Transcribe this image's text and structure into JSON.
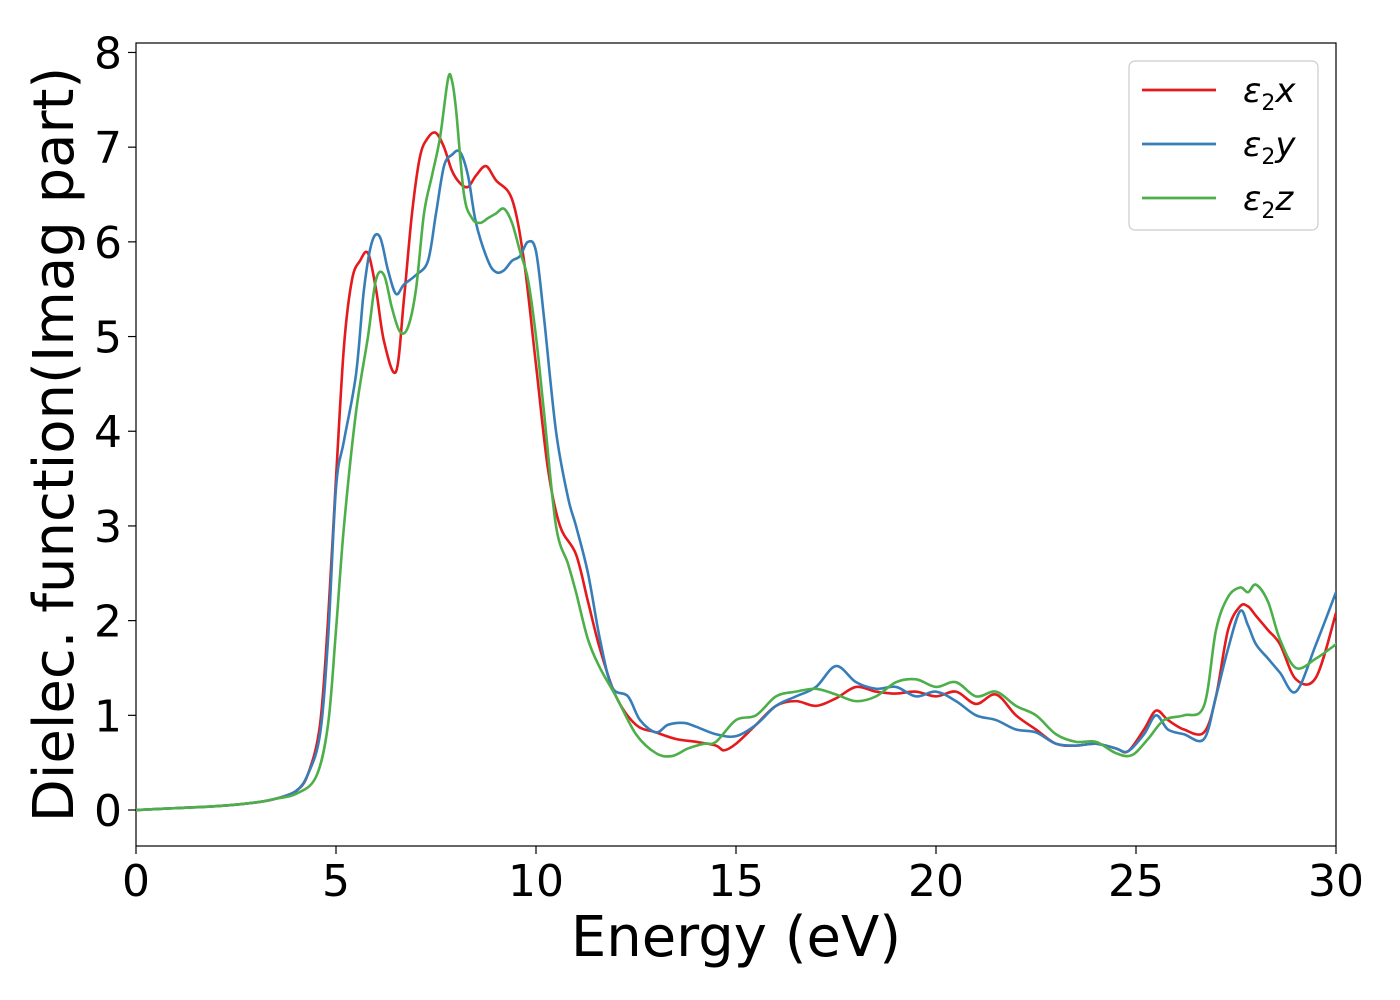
{
  "chart_data": {
    "type": "line",
    "title": "",
    "xlabel": "Energy (eV)",
    "ylabel": "Dielec. function(Imag part)",
    "xlim": [
      0,
      30
    ],
    "ylim": [
      -0.38,
      8.1
    ],
    "xticks": [
      0,
      5,
      10,
      15,
      20,
      25,
      30
    ],
    "yticks": [
      0,
      1,
      2,
      3,
      4,
      5,
      6,
      7,
      8
    ],
    "xtick_labels": [
      "0",
      "5",
      "10",
      "15",
      "20",
      "25",
      "30"
    ],
    "ytick_labels": [
      "0",
      "1",
      "2",
      "3",
      "4",
      "5",
      "6",
      "7",
      "8"
    ],
    "grid": false,
    "legend_position": "top-right",
    "series": [
      {
        "name": "ε2x",
        "legend_base": "ε",
        "legend_sub": "2",
        "legend_tail": "x",
        "color": "#e41a1c",
        "x": [
          0,
          1,
          2,
          3,
          3.5,
          4,
          4.3,
          4.6,
          4.8,
          5.0,
          5.2,
          5.4,
          5.6,
          5.8,
          6.0,
          6.2,
          6.5,
          6.7,
          6.9,
          7.1,
          7.3,
          7.5,
          7.7,
          7.9,
          8.1,
          8.3,
          8.5,
          8.75,
          9.0,
          9.4,
          9.7,
          10.0,
          10.3,
          10.6,
          11.0,
          11.3,
          11.6,
          12.0,
          12.5,
          13.0,
          13.5,
          14.0,
          14.5,
          14.7,
          15.0,
          15.5,
          16.0,
          16.5,
          17.0,
          17.5,
          18.0,
          18.5,
          19.0,
          19.5,
          20.0,
          20.5,
          21.0,
          21.5,
          22.0,
          22.5,
          23.0,
          23.5,
          24.0,
          24.5,
          24.8,
          25.2,
          25.5,
          25.8,
          26.2,
          26.7,
          27.0,
          27.3,
          27.6,
          27.8,
          28.0,
          28.3,
          28.6,
          29.0,
          29.5,
          30.0
        ],
        "y": [
          0.0,
          0.02,
          0.04,
          0.08,
          0.12,
          0.2,
          0.38,
          0.9,
          2.0,
          3.5,
          4.9,
          5.6,
          5.8,
          5.88,
          5.5,
          4.95,
          4.63,
          5.4,
          6.3,
          6.9,
          7.1,
          7.15,
          7.0,
          6.75,
          6.62,
          6.58,
          6.7,
          6.8,
          6.65,
          6.45,
          5.8,
          4.7,
          3.6,
          3.0,
          2.7,
          2.2,
          1.7,
          1.2,
          0.9,
          0.82,
          0.75,
          0.72,
          0.68,
          0.63,
          0.7,
          0.9,
          1.1,
          1.15,
          1.1,
          1.18,
          1.3,
          1.25,
          1.23,
          1.25,
          1.2,
          1.25,
          1.12,
          1.22,
          1.0,
          0.85,
          0.7,
          0.68,
          0.7,
          0.65,
          0.62,
          0.85,
          1.05,
          0.95,
          0.85,
          0.82,
          1.2,
          1.9,
          2.15,
          2.15,
          2.05,
          1.9,
          1.75,
          1.38,
          1.4,
          2.08
        ]
      },
      {
        "name": "ε2y",
        "legend_base": "ε",
        "legend_sub": "2",
        "legend_tail": "y",
        "color": "#377eb8",
        "x": [
          0,
          1,
          2,
          3,
          3.5,
          4,
          4.3,
          4.6,
          4.8,
          5.0,
          5.2,
          5.5,
          5.7,
          5.9,
          6.1,
          6.3,
          6.5,
          6.7,
          7.0,
          7.3,
          7.5,
          7.7,
          7.9,
          8.1,
          8.3,
          8.5,
          8.8,
          9.0,
          9.2,
          9.4,
          9.6,
          9.8,
          10.0,
          10.2,
          10.5,
          10.8,
          11.0,
          11.3,
          11.6,
          11.9,
          12.3,
          12.6,
          13.0,
          13.3,
          13.7,
          14.0,
          14.5,
          15.0,
          15.5,
          16.0,
          16.5,
          17.0,
          17.5,
          18.0,
          18.5,
          19.0,
          19.5,
          20.0,
          20.5,
          21.0,
          21.5,
          22.0,
          22.5,
          23.0,
          23.5,
          24.0,
          24.5,
          24.8,
          25.2,
          25.5,
          25.8,
          26.2,
          26.7,
          27.0,
          27.3,
          27.6,
          27.8,
          28.0,
          28.3,
          28.6,
          29.0,
          29.5,
          30.0
        ],
        "y": [
          0.0,
          0.02,
          0.04,
          0.08,
          0.12,
          0.2,
          0.38,
          0.8,
          1.8,
          3.4,
          3.9,
          4.6,
          5.5,
          6.0,
          6.05,
          5.7,
          5.45,
          5.55,
          5.65,
          5.8,
          6.3,
          6.8,
          6.92,
          6.95,
          6.7,
          6.2,
          5.8,
          5.68,
          5.7,
          5.8,
          5.85,
          6.0,
          5.9,
          5.2,
          4.0,
          3.3,
          3.0,
          2.5,
          1.8,
          1.3,
          1.2,
          0.95,
          0.82,
          0.9,
          0.92,
          0.88,
          0.8,
          0.78,
          0.9,
          1.1,
          1.2,
          1.3,
          1.52,
          1.35,
          1.28,
          1.3,
          1.2,
          1.25,
          1.15,
          1.0,
          0.95,
          0.85,
          0.82,
          0.7,
          0.68,
          0.7,
          0.65,
          0.62,
          0.8,
          1.0,
          0.85,
          0.8,
          0.75,
          1.2,
          1.7,
          2.1,
          1.95,
          1.75,
          1.6,
          1.45,
          1.25,
          1.75,
          2.3
        ]
      },
      {
        "name": "ε2z",
        "legend_base": "ε",
        "legend_sub": "2",
        "legend_tail": "z",
        "color": "#4daf4a",
        "x": [
          0,
          1,
          2,
          3,
          3.5,
          4,
          4.5,
          4.8,
          5.0,
          5.2,
          5.5,
          5.8,
          6.0,
          6.2,
          6.4,
          6.6,
          6.8,
          7.0,
          7.2,
          7.4,
          7.6,
          7.8,
          7.9,
          8.0,
          8.2,
          8.4,
          8.6,
          8.8,
          9.0,
          9.2,
          9.4,
          9.6,
          9.8,
          10.0,
          10.2,
          10.5,
          10.8,
          11.0,
          11.3,
          11.6,
          12.0,
          12.5,
          13.0,
          13.4,
          13.8,
          14.2,
          14.5,
          15.0,
          15.5,
          16.0,
          16.5,
          17.0,
          17.5,
          18.0,
          18.5,
          19.0,
          19.5,
          20.0,
          20.5,
          21.0,
          21.5,
          22.0,
          22.5,
          23.0,
          23.5,
          24.0,
          24.5,
          24.9,
          25.3,
          25.7,
          26.2,
          26.7,
          27.0,
          27.3,
          27.6,
          27.8,
          28.0,
          28.3,
          28.6,
          29.0,
          29.5,
          30.0
        ],
        "y": [
          0.0,
          0.02,
          0.04,
          0.08,
          0.12,
          0.17,
          0.35,
          0.9,
          1.9,
          3.0,
          4.2,
          5.0,
          5.6,
          5.65,
          5.3,
          5.05,
          5.1,
          5.5,
          6.3,
          6.7,
          7.1,
          7.72,
          7.7,
          7.4,
          6.5,
          6.25,
          6.2,
          6.25,
          6.3,
          6.35,
          6.2,
          5.9,
          5.6,
          5.0,
          4.2,
          3.0,
          2.6,
          2.3,
          1.8,
          1.5,
          1.2,
          0.8,
          0.6,
          0.57,
          0.65,
          0.7,
          0.72,
          0.95,
          1.0,
          1.2,
          1.25,
          1.28,
          1.22,
          1.15,
          1.2,
          1.35,
          1.38,
          1.3,
          1.35,
          1.2,
          1.25,
          1.1,
          1.0,
          0.8,
          0.72,
          0.72,
          0.6,
          0.58,
          0.75,
          0.95,
          1.0,
          1.1,
          1.9,
          2.25,
          2.35,
          2.3,
          2.38,
          2.2,
          1.8,
          1.5,
          1.6,
          1.75
        ]
      }
    ]
  }
}
